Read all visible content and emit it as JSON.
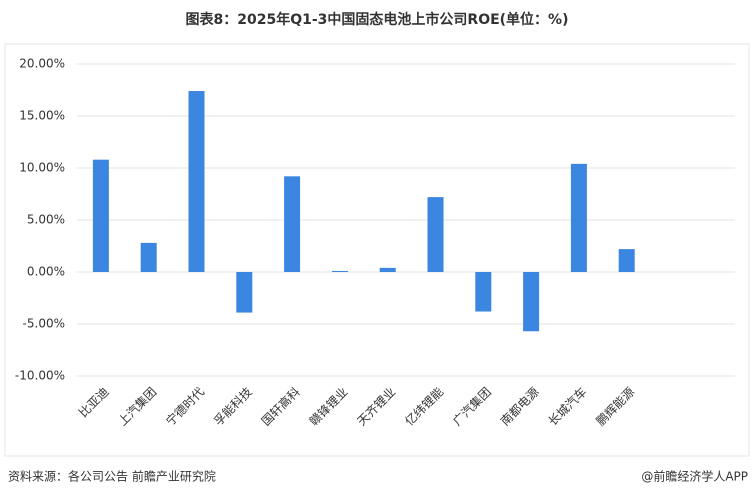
{
  "chart_data": {
    "type": "bar",
    "title": "图表8：2025年Q1-3中国固态电池上市公司ROE(单位：%)",
    "categories": [
      "比亚迪",
      "上汽集团",
      "宁德时代",
      "孚能科技",
      "国轩高科",
      "赣锋锂业",
      "天齐锂业",
      "亿纬锂能",
      "广汽集团",
      "南都电源",
      "长城汽车",
      "鹏辉能源"
    ],
    "values": [
      10.8,
      2.8,
      17.4,
      -3.9,
      9.2,
      0.1,
      0.4,
      7.2,
      -3.8,
      -5.7,
      10.4,
      2.2
    ],
    "color": "#3a86e0",
    "ylim": [
      -10,
      20
    ],
    "yticks": [
      {
        "value": -10,
        "label": "-10.00%"
      },
      {
        "value": -5,
        "label": "-5.00%"
      },
      {
        "value": 0,
        "label": "0.00%"
      },
      {
        "value": 5,
        "label": "5.00%"
      },
      {
        "value": 10,
        "label": "10.00%"
      },
      {
        "value": 15,
        "label": "15.00%"
      },
      {
        "value": 20,
        "label": "20.00%"
      }
    ],
    "grid": true,
    "source": "资料来源：各公司公告 前瞻产业研究院",
    "credit": "@前瞻经济学人APP"
  }
}
